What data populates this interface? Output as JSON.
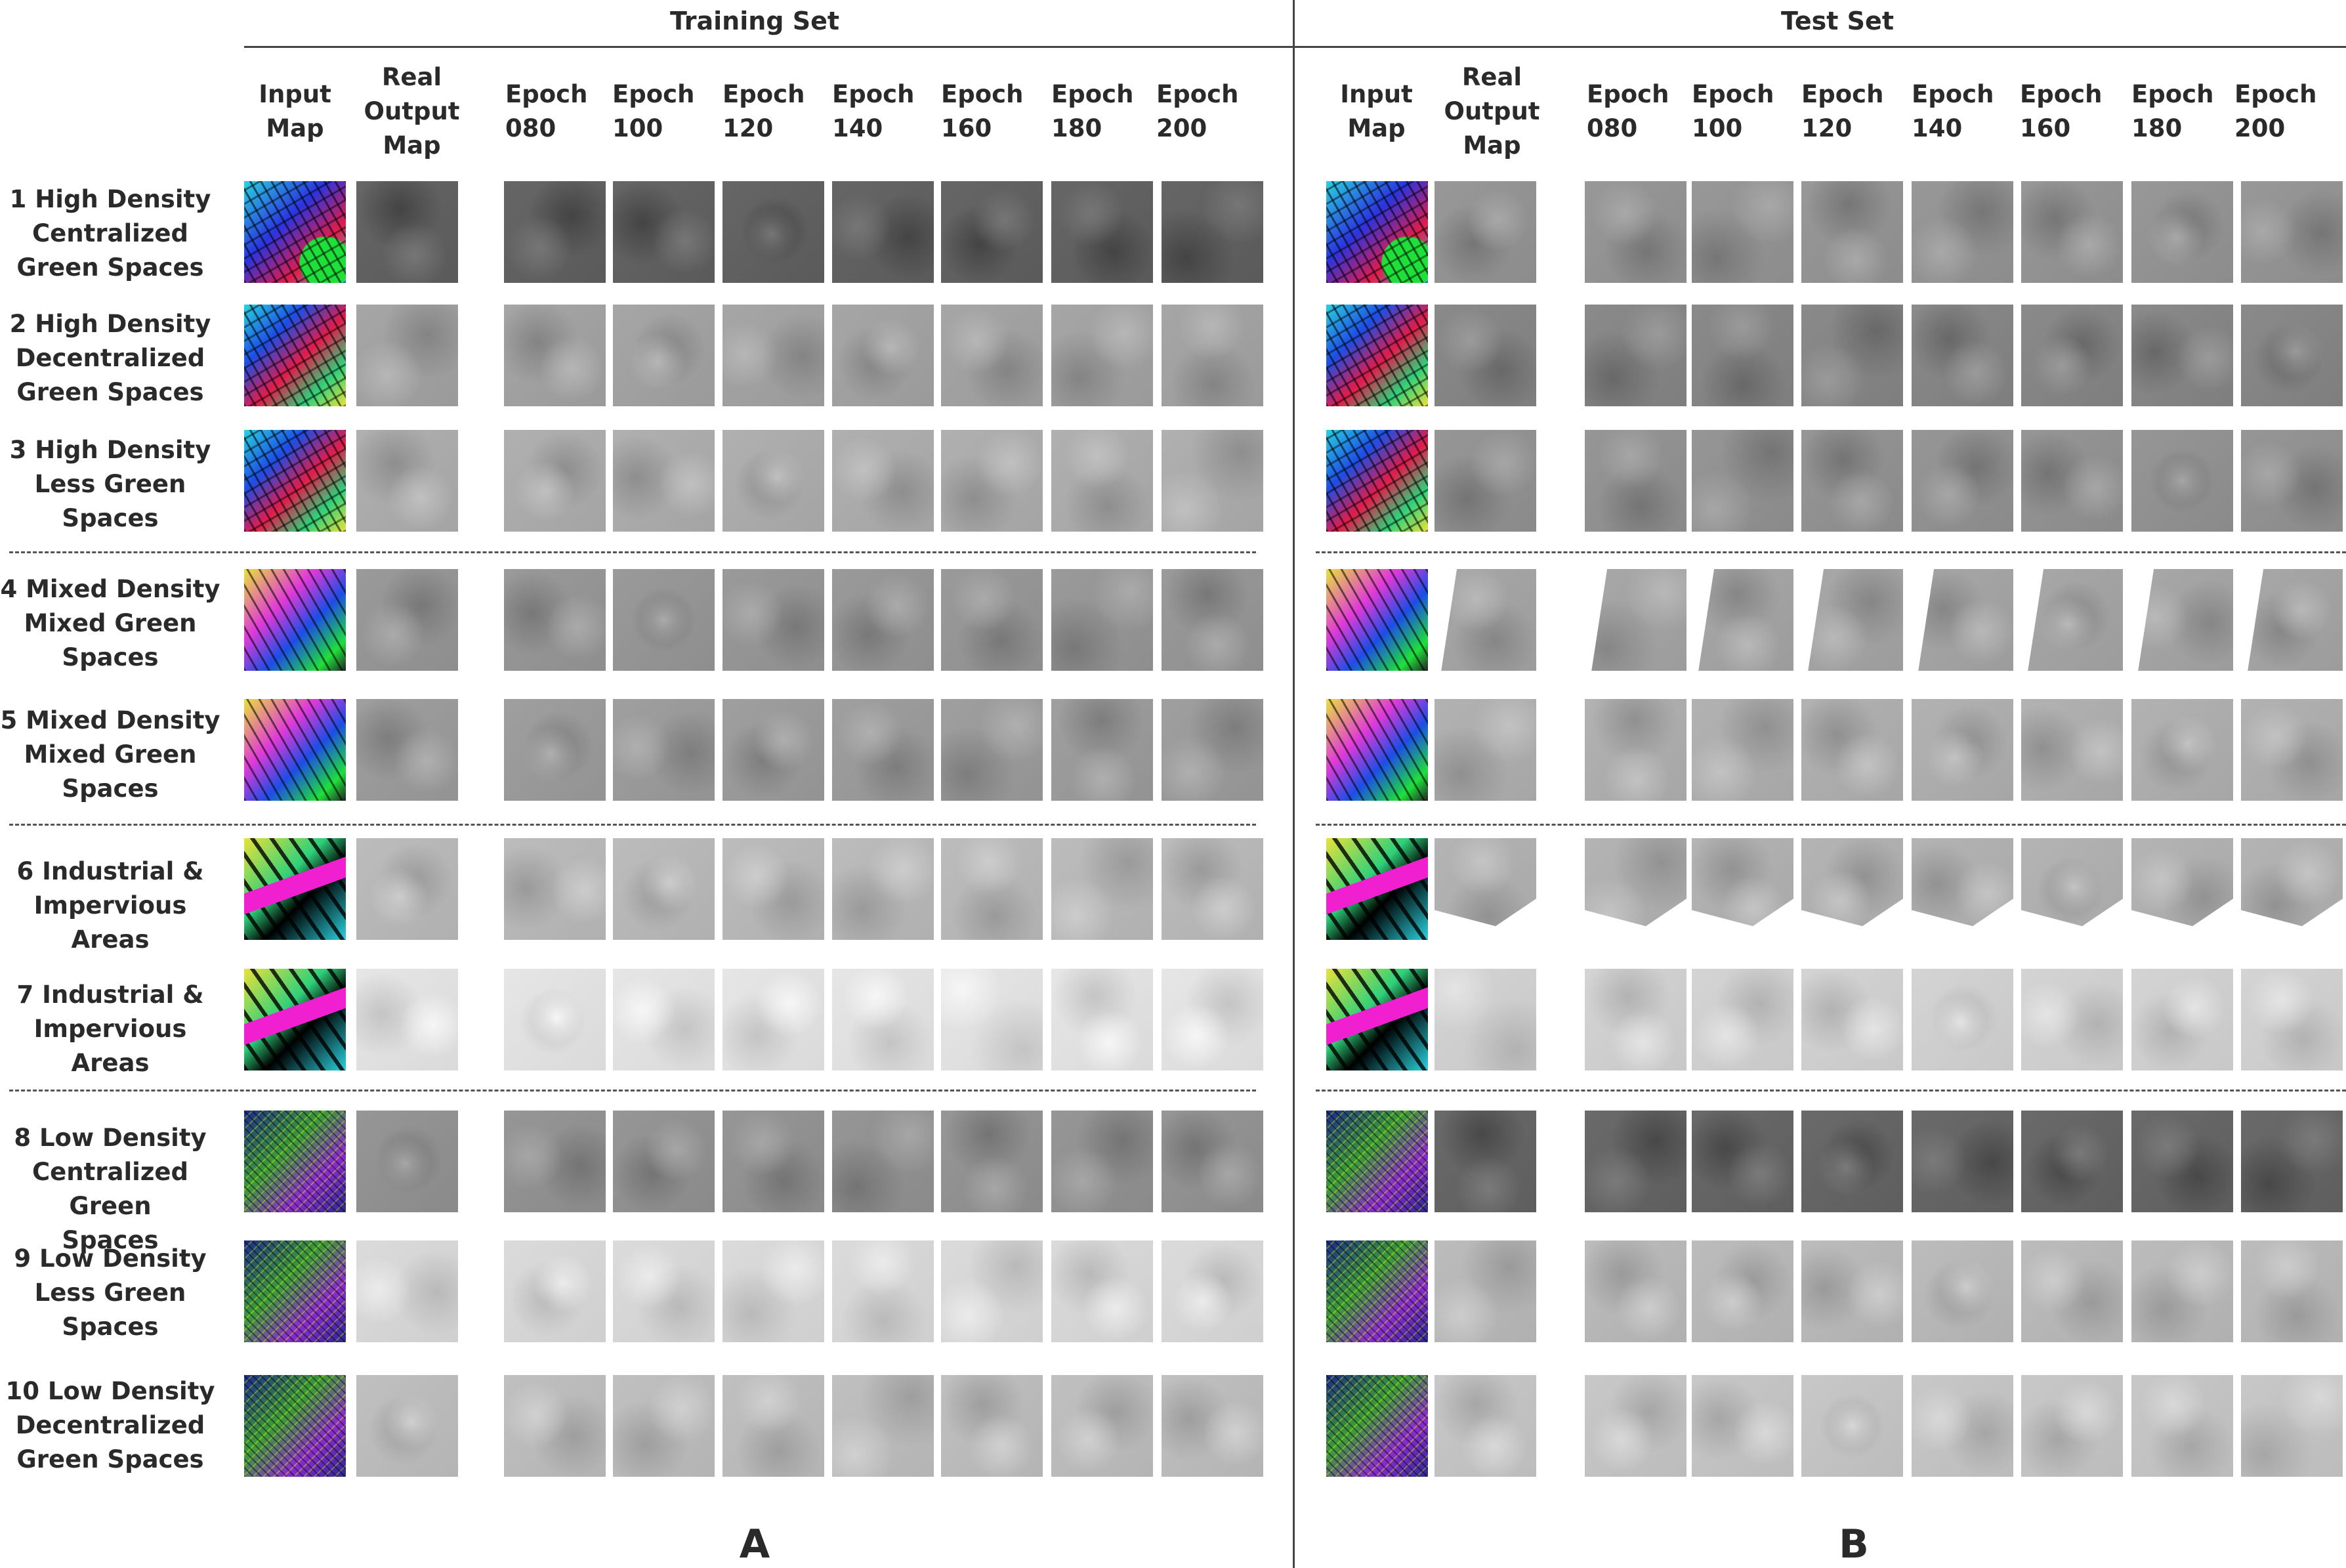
{
  "sections": {
    "a": {
      "title": "Training Set",
      "letter": "A"
    },
    "b": {
      "title": "Test Set",
      "letter": "B"
    }
  },
  "columns": [
    {
      "id": "input",
      "label": "Input\nMap"
    },
    {
      "id": "real",
      "label": "Real\nOutput\nMap"
    },
    {
      "id": "e080",
      "label": "Epoch\n080"
    },
    {
      "id": "e100",
      "label": "Epoch\n100"
    },
    {
      "id": "e120",
      "label": "Epoch\n120"
    },
    {
      "id": "e140",
      "label": "Epoch\n140"
    },
    {
      "id": "e160",
      "label": "Epoch\n160"
    },
    {
      "id": "e180",
      "label": "Epoch\n180"
    },
    {
      "id": "e200",
      "label": "Epoch\n200"
    }
  ],
  "rows": [
    {
      "label": "1 High Density\nCentralized\nGreen Spaces",
      "train_tone": "#5a5a5a",
      "test_tone": "#8c8c8c"
    },
    {
      "label": "2 High Density\nDecentralized\nGreen Spaces",
      "train_tone": "#9a9a9a",
      "test_tone": "#7e7e7e"
    },
    {
      "label": "3 High Density\nLess Green\nSpaces",
      "train_tone": "#a4a4a4",
      "test_tone": "#8a8a8a"
    },
    {
      "label": "4 Mixed Density\nMixed Green\nSpaces",
      "train_tone": "#8e8e8e",
      "test_tone": "#9c9c9c"
    },
    {
      "label": "5 Mixed Density\nMixed Green\nSpaces",
      "train_tone": "#939393",
      "test_tone": "#a6a6a6"
    },
    {
      "label": "6 Industrial &\nImpervious Areas",
      "train_tone": "#b0b0b0",
      "test_tone": "#a8a8a8"
    },
    {
      "label": "7 Industrial &\nImpervious Areas",
      "train_tone": "#dadada",
      "test_tone": "#c8c8c8"
    },
    {
      "label": "8 Low Density\nCentralized Green\nSpaces",
      "train_tone": "#8a8a8a",
      "test_tone": "#5e5e5e"
    },
    {
      "label": "9 Low Density\nLess Green\nSpaces",
      "train_tone": "#cfcfcf",
      "test_tone": "#b0b0b0"
    },
    {
      "label": "10 Low Density\nDecentralized\nGreen Spaces",
      "train_tone": "#b4b4b4",
      "test_tone": "#bcbcbc"
    }
  ]
}
